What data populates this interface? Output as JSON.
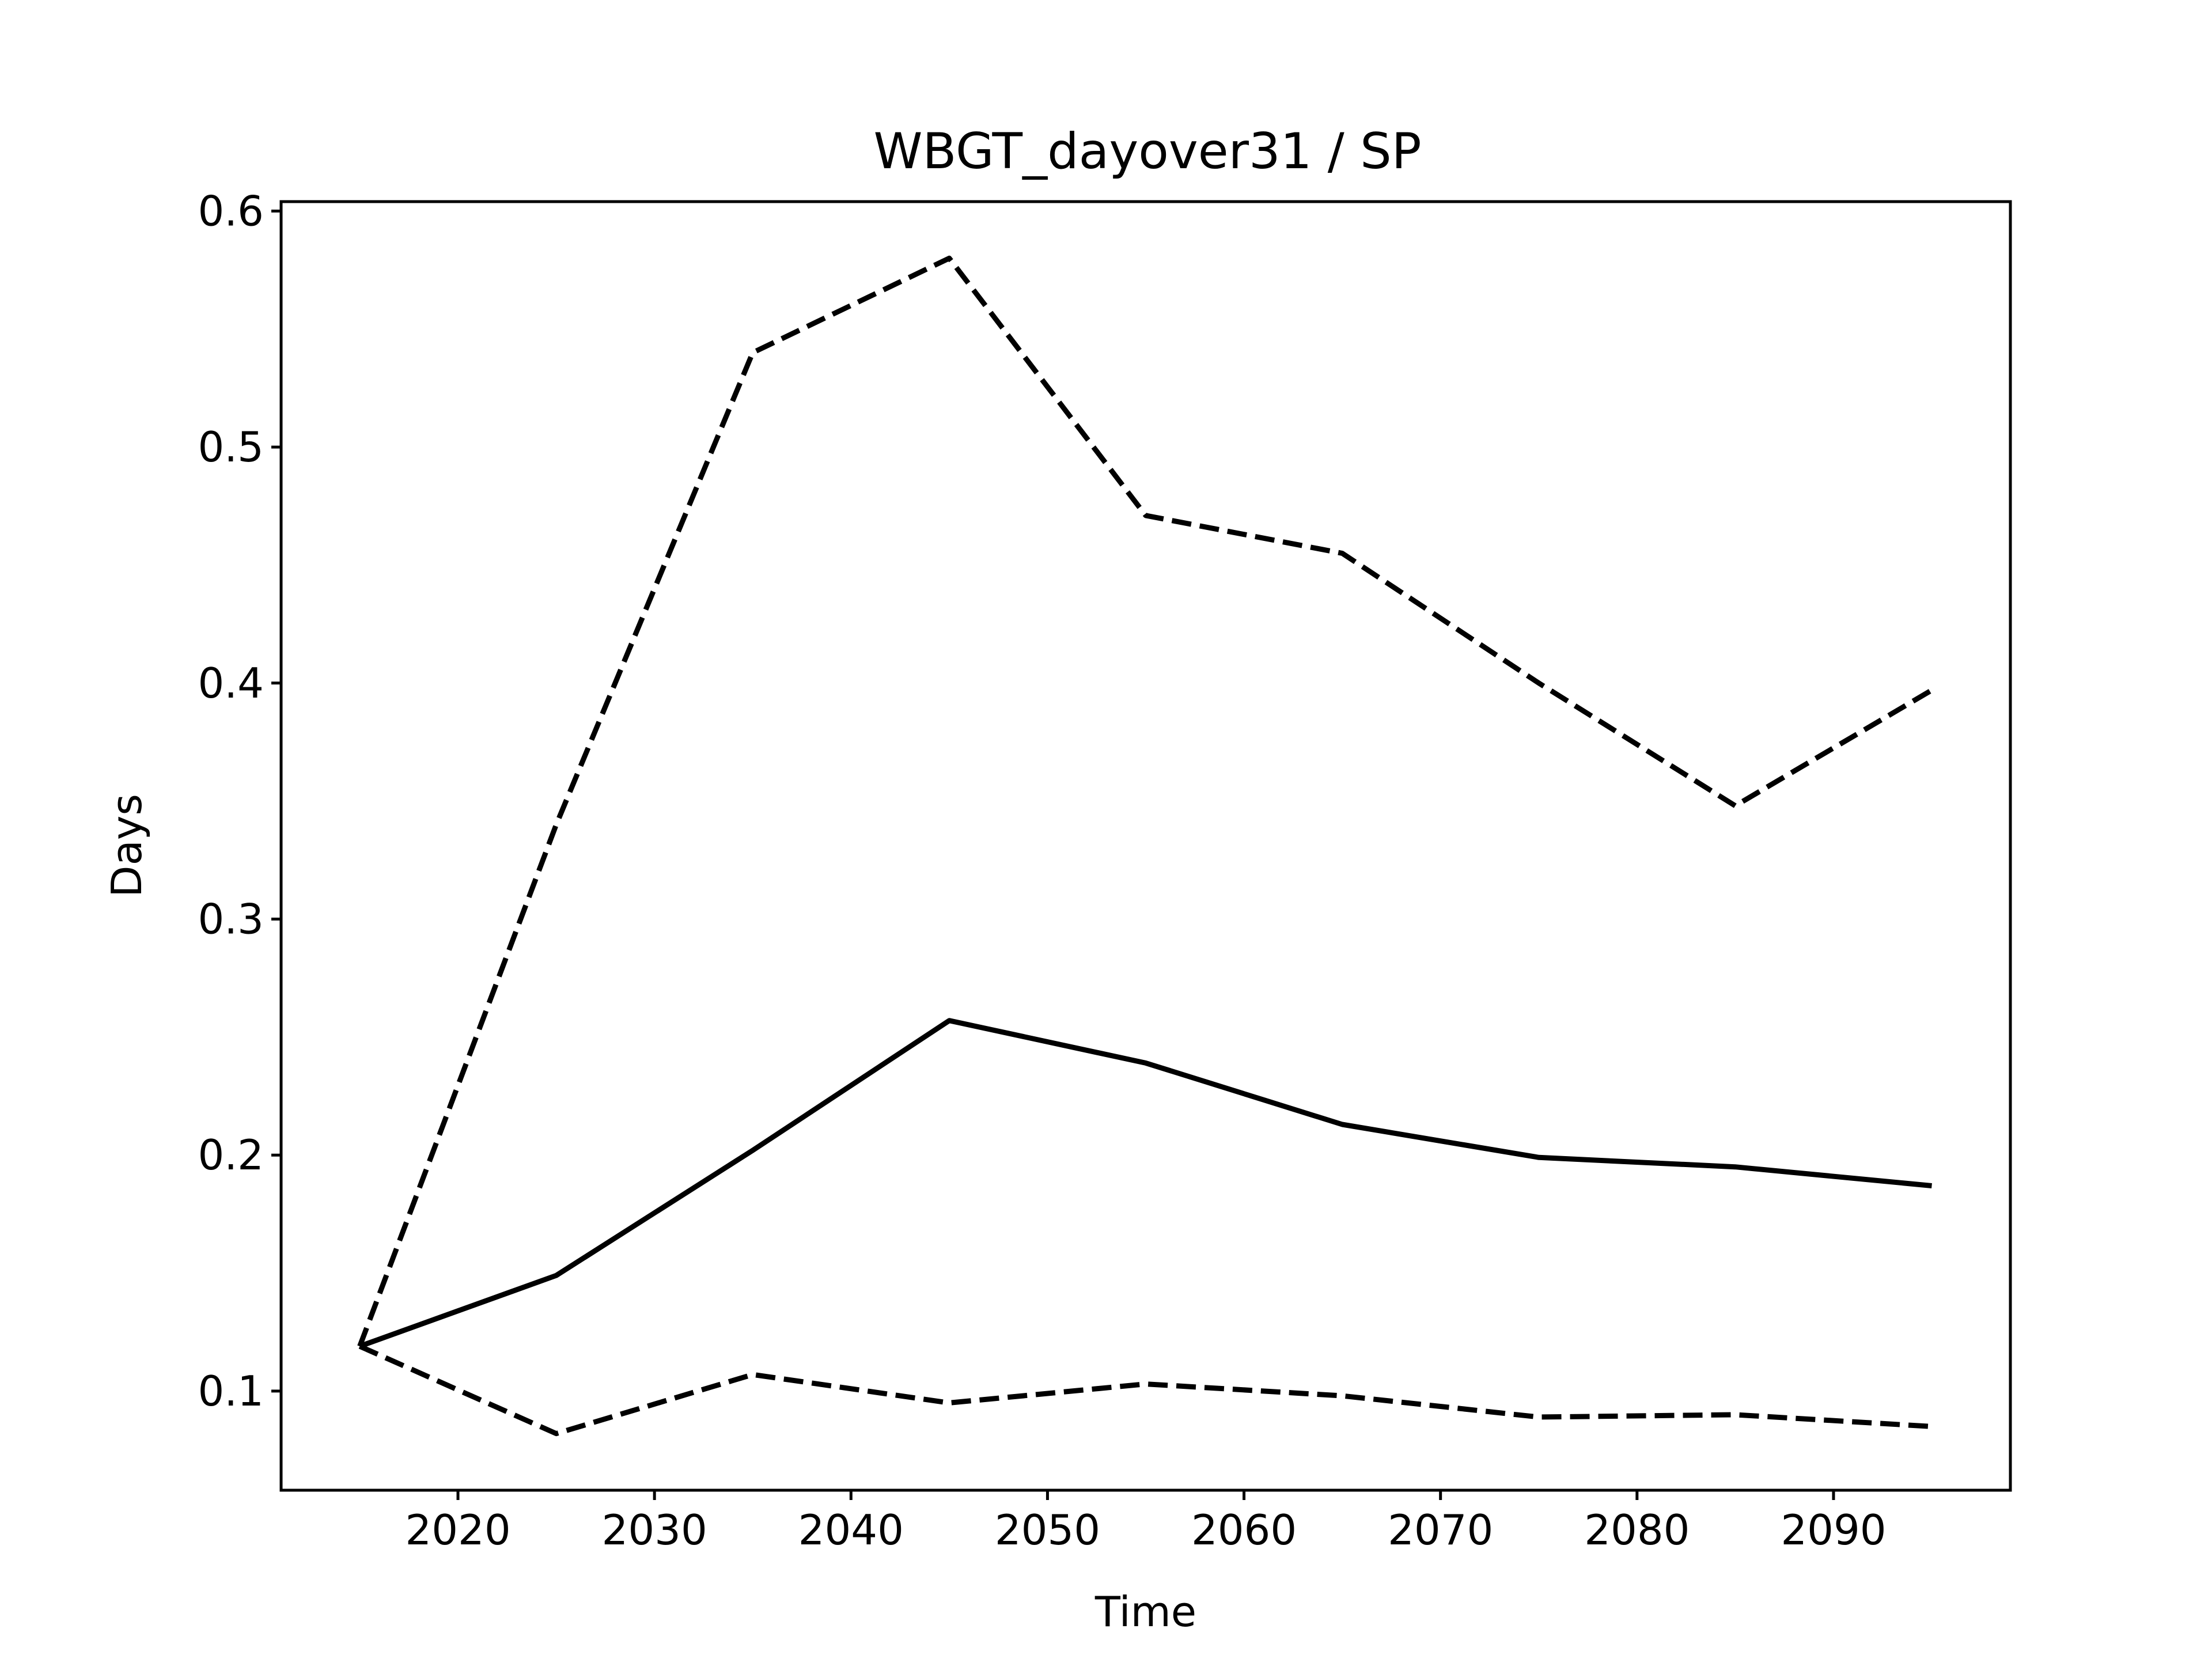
{
  "chart_data": {
    "type": "line",
    "title": "WBGT_dayover31 / SP",
    "xlabel": "Time",
    "ylabel": "Days",
    "x": [
      2015,
      2025,
      2035,
      2045,
      2055,
      2065,
      2075,
      2085,
      2095
    ],
    "xlim": [
      2011,
      2099
    ],
    "ylim": [
      0.058,
      0.604
    ],
    "xticks": [
      2020,
      2030,
      2040,
      2050,
      2060,
      2070,
      2080,
      2090
    ],
    "yticks": [
      0.1,
      0.2,
      0.3,
      0.4,
      0.5,
      0.6
    ],
    "xtick_labels": [
      "2020",
      "2030",
      "2040",
      "2050",
      "2060",
      "2070",
      "2080",
      "2090"
    ],
    "ytick_labels": [
      "0.1",
      "0.2",
      "0.3",
      "0.4",
      "0.5",
      "0.6"
    ],
    "grid": false,
    "legend": "none",
    "series": [
      {
        "style": "solid",
        "color": "#000000",
        "values": [
          0.119,
          0.149,
          0.202,
          0.257,
          0.239,
          0.213,
          0.199,
          0.195,
          0.187
        ]
      },
      {
        "style": "dashed",
        "color": "#000000",
        "values": [
          0.119,
          0.34,
          0.54,
          0.58,
          0.471,
          0.455,
          0.4,
          0.348,
          0.397
        ]
      },
      {
        "style": "dashed",
        "color": "#000000",
        "values": [
          0.119,
          0.082,
          0.107,
          0.095,
          0.103,
          0.098,
          0.089,
          0.09,
          0.085
        ]
      }
    ]
  }
}
